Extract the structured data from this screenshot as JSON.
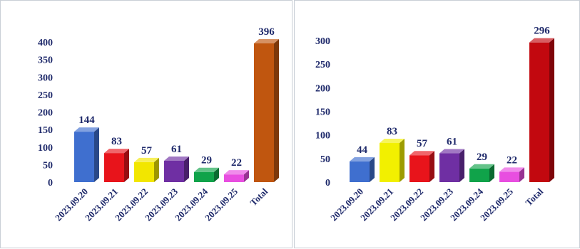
{
  "chart_data": [
    {
      "type": "bar",
      "style": "3d-column",
      "categories": [
        "2023.09.20",
        "2023.09.21",
        "2023.09.22",
        "2023.09.23",
        "2023.09.24",
        "2023.09.25",
        "Total"
      ],
      "values": [
        144,
        83,
        57,
        61,
        29,
        22,
        396
      ],
      "colors": [
        "#3f6fcf",
        "#e8141b",
        "#f2e600",
        "#6f2fa3",
        "#10a34a",
        "#e84ee0",
        "#c0560f"
      ],
      "yticks": [
        0,
        50,
        100,
        150,
        200,
        250,
        300,
        350,
        400
      ],
      "ylim": [
        0,
        400
      ],
      "grid": false,
      "legend": "none",
      "title": "",
      "xlabel": "",
      "ylabel": ""
    },
    {
      "type": "bar",
      "style": "3d-column",
      "categories": [
        "2023.09.20",
        "2023.09.21",
        "2023.09.22",
        "2023.09.23",
        "2023.09.24",
        "2023.09.25",
        "Total"
      ],
      "values": [
        44,
        83,
        57,
        61,
        29,
        22,
        296
      ],
      "colors": [
        "#3f6fcf",
        "#f2f000",
        "#e8141b",
        "#6f2fa3",
        "#10a34a",
        "#e84ee0",
        "#c2080f"
      ],
      "yticks": [
        0,
        50,
        100,
        150,
        200,
        250,
        300
      ],
      "ylim": [
        0,
        300
      ],
      "grid": false,
      "legend": "none",
      "title": "",
      "xlabel": "",
      "ylabel": ""
    }
  ]
}
